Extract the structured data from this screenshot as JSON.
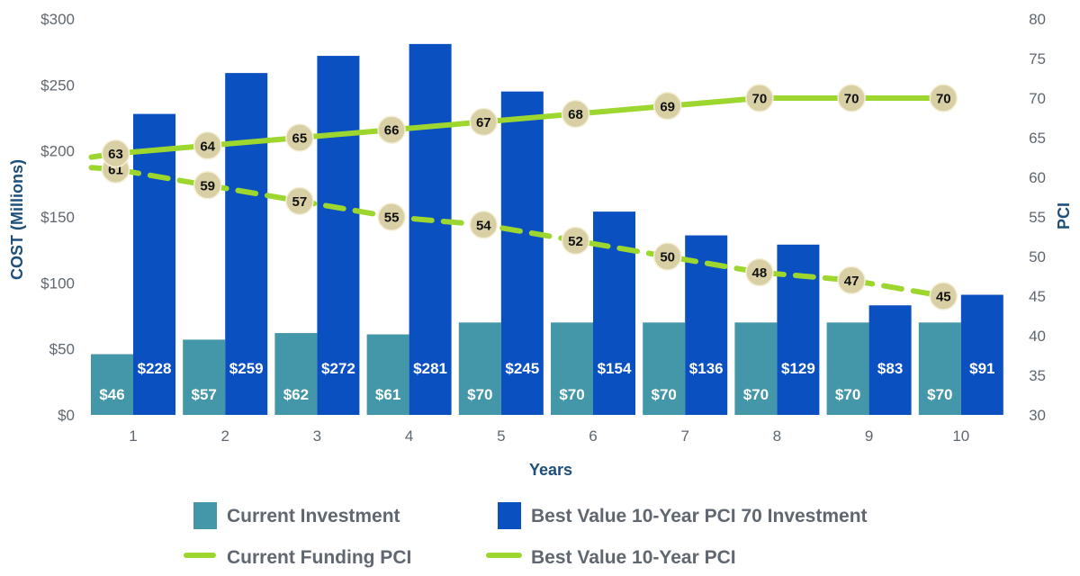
{
  "chart_data": {
    "type": "bar",
    "title": "",
    "categories": [
      "1",
      "2",
      "3",
      "4",
      "5",
      "6",
      "7",
      "8",
      "9",
      "10"
    ],
    "xlabel": "Years",
    "ylabel": "COST (Millions)",
    "y2label": "PCI",
    "ylim": [
      0,
      300
    ],
    "y2lim": [
      30,
      80
    ],
    "yticks": [
      "$0",
      "$50",
      "$100",
      "$150",
      "$200",
      "$250",
      "$300"
    ],
    "ytick_values": [
      0,
      50,
      100,
      150,
      200,
      250,
      300
    ],
    "y2ticks": [
      "30",
      "35",
      "40",
      "45",
      "50",
      "55",
      "60",
      "65",
      "70",
      "75",
      "80"
    ],
    "y2tick_values": [
      30,
      35,
      40,
      45,
      50,
      55,
      60,
      65,
      70,
      75,
      80
    ],
    "series": [
      {
        "name": "Current Investment",
        "kind": "bar",
        "axis": "left",
        "color": "#4497a8",
        "values": [
          46,
          57,
          62,
          61,
          70,
          70,
          70,
          70,
          70,
          70
        ],
        "labels": [
          "$46",
          "$57",
          "$62",
          "$61",
          "$70",
          "$70",
          "$70",
          "$70",
          "$70",
          "$70"
        ]
      },
      {
        "name": "Best Value 10-Year PCI 70 Investment",
        "kind": "bar",
        "axis": "left",
        "color": "#0a50c0",
        "values": [
          228,
          259,
          272,
          281,
          245,
          154,
          136,
          129,
          83,
          91
        ],
        "labels": [
          "$228",
          "$259",
          "$272",
          "$281",
          "$245",
          "$154",
          "$136",
          "$129",
          "$83",
          "$91"
        ]
      },
      {
        "name": "Current Funding PCI",
        "kind": "line",
        "style": "dashed",
        "axis": "right",
        "color": "#9ed630",
        "values": [
          61,
          59,
          57,
          55,
          54,
          52,
          50,
          48,
          47,
          45
        ],
        "labels": [
          "61",
          "59",
          "57",
          "55",
          "54",
          "52",
          "50",
          "48",
          "47",
          "45"
        ]
      },
      {
        "name": "Best Value 10-Year PCI",
        "kind": "line",
        "style": "solid",
        "axis": "right",
        "color": "#9ed630",
        "values": [
          63,
          64,
          65,
          66,
          67,
          68,
          69,
          70,
          70,
          70
        ],
        "labels": [
          "63",
          "64",
          "65",
          "66",
          "67",
          "68",
          "69",
          "70",
          "70",
          "70"
        ]
      }
    ],
    "marker_color": "#d8d0a4",
    "legend": [
      {
        "name": "Current Investment",
        "type": "swatch",
        "color": "#4497a8"
      },
      {
        "name": "Best Value 10-Year PCI 70 Investment",
        "type": "swatch",
        "color": "#0a50c0"
      },
      {
        "name": "Current Funding PCI",
        "type": "dashed-line",
        "color": "#9ed630"
      },
      {
        "name": "Best Value 10-Year PCI",
        "type": "solid-line",
        "color": "#9ed630"
      }
    ],
    "legend_position": "bottom",
    "grid": false
  }
}
